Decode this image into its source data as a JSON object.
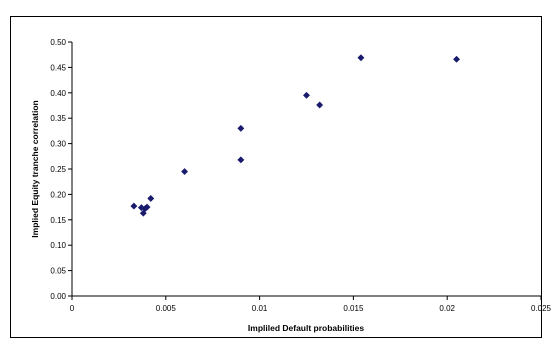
{
  "chart_data": {
    "type": "scatter",
    "title": "",
    "xlabel": "Impliled Default probabilities",
    "ylabel": "Implied Equity tranche correlation",
    "xlim": [
      0,
      0.025
    ],
    "ylim": [
      0,
      0.5
    ],
    "x_ticks": [
      "0",
      "0.005",
      "0.01",
      "0.015",
      "0.02",
      "0.025"
    ],
    "y_ticks": [
      "0.00",
      "0.05",
      "0.10",
      "0.15",
      "0.20",
      "0.25",
      "0.30",
      "0.35",
      "0.40",
      "0.45",
      "0.50"
    ],
    "grid": false,
    "legend": "none",
    "marker": "diamond",
    "marker_color": "#1a1a6e",
    "points": [
      {
        "x": 0.0033,
        "y": 0.177
      },
      {
        "x": 0.0037,
        "y": 0.174
      },
      {
        "x": 0.0038,
        "y": 0.163
      },
      {
        "x": 0.0039,
        "y": 0.172
      },
      {
        "x": 0.004,
        "y": 0.175
      },
      {
        "x": 0.0042,
        "y": 0.192
      },
      {
        "x": 0.006,
        "y": 0.245
      },
      {
        "x": 0.009,
        "y": 0.268
      },
      {
        "x": 0.009,
        "y": 0.33
      },
      {
        "x": 0.0125,
        "y": 0.395
      },
      {
        "x": 0.0132,
        "y": 0.376
      },
      {
        "x": 0.0154,
        "y": 0.469
      },
      {
        "x": 0.0205,
        "y": 0.466
      }
    ]
  }
}
